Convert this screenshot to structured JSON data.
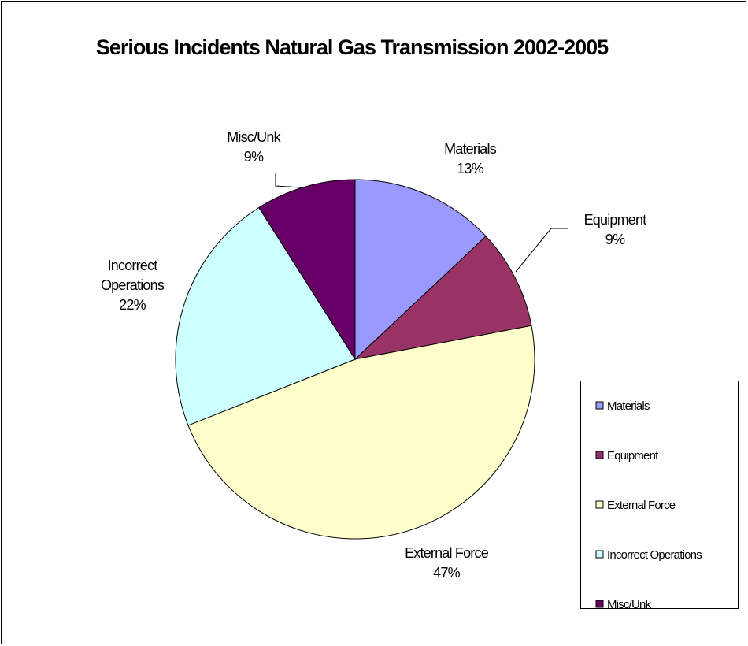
{
  "chart_data": {
    "type": "pie",
    "title": "Serious Incidents Natural Gas Transmission 2002-2005",
    "categories": [
      "Materials",
      "Equipment",
      "External Force",
      "Incorrect Operations",
      "Misc/Unk"
    ],
    "values": [
      13,
      9,
      47,
      22,
      9
    ],
    "value_labels": [
      "13%",
      "9%",
      "47%",
      "22%",
      "9%"
    ],
    "colors": [
      "#9999ff",
      "#993366",
      "#ffffcc",
      "#ccffff",
      "#660066"
    ],
    "legend": "right"
  }
}
